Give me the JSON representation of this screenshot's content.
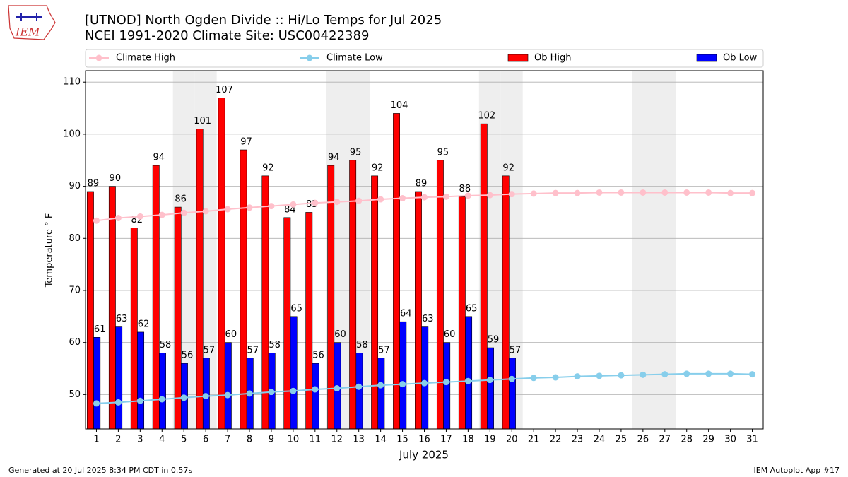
{
  "chart_data": {
    "type": "bar_line",
    "title": "[UTNOD] North Ogden Divide  :: Hi/Lo Temps for Jul 2025",
    "subtitle": "NCEI 1991-2020 Climate Site: USC00422389",
    "xlabel": "July 2025",
    "ylabel": "Temperature $^\\circ$F",
    "ylabel_printed": "Temperature ° F",
    "footer_left": "Generated at 20 Jul 2025 8:34 PM CDT in 0.57s",
    "footer_right": "IEM Autoplot App #17",
    "logo": "IEM",
    "categories": [
      "1",
      "2",
      "3",
      "4",
      "5",
      "6",
      "7",
      "8",
      "9",
      "10",
      "11",
      "12",
      "13",
      "14",
      "15",
      "16",
      "17",
      "18",
      "19",
      "20",
      "21",
      "22",
      "23",
      "24",
      "25",
      "26",
      "27",
      "28",
      "29",
      "30",
      "31"
    ],
    "shaded_categories": [
      "5",
      "6",
      "12",
      "13",
      "19",
      "20",
      "26",
      "27"
    ],
    "series": [
      {
        "name": "Climate High",
        "kind": "line",
        "color": "#ffc0cb",
        "values": [
          83.4,
          83.9,
          84.2,
          84.5,
          84.9,
          85.2,
          85.6,
          85.9,
          86.2,
          86.5,
          86.8,
          87.0,
          87.2,
          87.5,
          87.7,
          87.9,
          88.0,
          88.2,
          88.3,
          88.5,
          88.6,
          88.7,
          88.7,
          88.8,
          88.8,
          88.8,
          88.8,
          88.8,
          88.8,
          88.7,
          88.7
        ]
      },
      {
        "name": "Climate Low",
        "kind": "line",
        "color": "#87ceeb",
        "values": [
          48.3,
          48.5,
          48.8,
          49.1,
          49.4,
          49.7,
          49.9,
          50.2,
          50.5,
          50.7,
          51.0,
          51.2,
          51.5,
          51.8,
          52.0,
          52.2,
          52.4,
          52.6,
          52.8,
          53.0,
          53.2,
          53.3,
          53.5,
          53.6,
          53.7,
          53.8,
          53.9,
          54.0,
          54.0,
          54.0,
          53.9
        ]
      },
      {
        "name": "Ob High",
        "kind": "bar",
        "color": "#ff0000",
        "values": [
          89,
          90,
          82,
          94,
          86,
          101,
          107,
          97,
          92,
          84,
          85,
          94,
          95,
          92,
          104,
          89,
          95,
          88,
          102,
          92,
          null,
          null,
          null,
          null,
          null,
          null,
          null,
          null,
          null,
          null,
          null
        ]
      },
      {
        "name": "Ob Low",
        "kind": "bar",
        "color": "#0000ff",
        "values": [
          61,
          63,
          62,
          58,
          56,
          57,
          60,
          57,
          58,
          65,
          56,
          60,
          58,
          57,
          64,
          63,
          60,
          65,
          59,
          57,
          null,
          null,
          null,
          null,
          null,
          null,
          null,
          null,
          null,
          null,
          null
        ]
      }
    ],
    "ylim": [
      43.4,
      112.2
    ],
    "yticks": [
      50,
      60,
      70,
      80,
      90,
      100,
      110
    ],
    "grid": true,
    "legend": "top"
  }
}
